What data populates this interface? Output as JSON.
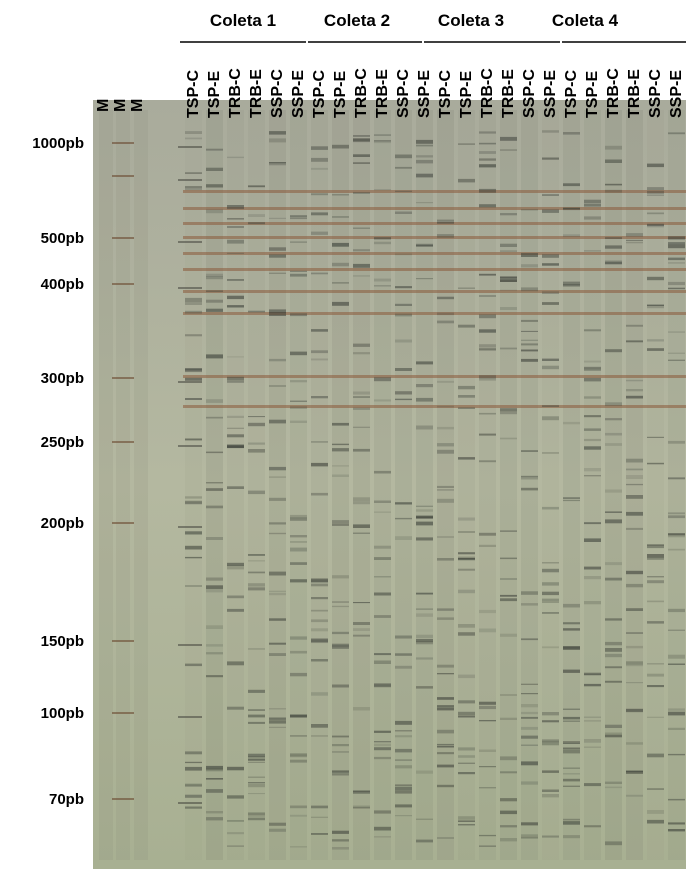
{
  "collections": [
    {
      "title": "Coleta 1",
      "lanes": [
        "TSP-C",
        "TSP-E",
        "TRB-C",
        "TRB-E",
        "SSP-C",
        "SSP-E"
      ]
    },
    {
      "title": "Coleta 2",
      "lanes": [
        "TSP-C",
        "TSP-E",
        "TRB-C",
        "TRB-E",
        "SSP-C",
        "SSP-E"
      ]
    },
    {
      "title": "Coleta 3",
      "lanes": [
        "TSP-C",
        "TSP-E",
        "TRB-C",
        "TRB-E",
        "SSP-C",
        "SSP-E"
      ]
    },
    {
      "title": "Coleta 4",
      "lanes": [
        "TSP-C",
        "TSP-E",
        "TRB-C",
        "TRB-E",
        "SSP-C",
        "SSP-E"
      ]
    }
  ],
  "markers": [
    "M",
    "M",
    "M"
  ],
  "size_labels": [
    "1000pb",
    "500pb",
    "400pb",
    "300pb",
    "250pb",
    "200pb",
    "150pb",
    "100pb",
    "70pb"
  ]
}
